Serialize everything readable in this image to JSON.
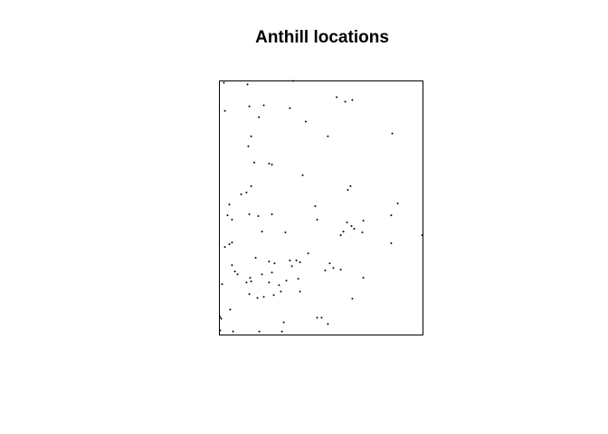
{
  "chart_data": {
    "type": "scatter",
    "title": "Anthill locations",
    "xlabel": "",
    "ylabel": "",
    "axes_shown": false,
    "grid": false,
    "legend": "none",
    "point_color": "#000000",
    "xlim": [
      0,
      100
    ],
    "ylim": [
      0,
      100
    ],
    "points": [
      [
        2.2,
        99.3
      ],
      [
        13.8,
        98.6
      ],
      [
        36.3,
        100.0
      ],
      [
        57.6,
        93.6
      ],
      [
        61.8,
        91.8
      ],
      [
        65.3,
        92.5
      ],
      [
        14.7,
        90.0
      ],
      [
        21.8,
        90.4
      ],
      [
        34.6,
        89.3
      ],
      [
        2.7,
        88.2
      ],
      [
        42.4,
        84.0
      ],
      [
        19.4,
        85.7
      ],
      [
        15.6,
        78.2
      ],
      [
        53.3,
        78.2
      ],
      [
        84.9,
        79.3
      ],
      [
        14.2,
        74.3
      ],
      [
        17.1,
        67.9
      ],
      [
        24.4,
        67.5
      ],
      [
        25.8,
        67.1
      ],
      [
        40.9,
        62.9
      ],
      [
        15.6,
        58.6
      ],
      [
        63.1,
        57.1
      ],
      [
        64.4,
        58.6
      ],
      [
        13.3,
        56.1
      ],
      [
        10.7,
        55.4
      ],
      [
        87.6,
        51.8
      ],
      [
        4.9,
        51.4
      ],
      [
        47.1,
        50.7
      ],
      [
        14.7,
        47.5
      ],
      [
        19.1,
        46.8
      ],
      [
        25.8,
        47.5
      ],
      [
        4.0,
        47.1
      ],
      [
        84.4,
        47.1
      ],
      [
        6.2,
        45.4
      ],
      [
        48.0,
        45.4
      ],
      [
        62.7,
        44.3
      ],
      [
        70.7,
        45.0
      ],
      [
        64.9,
        42.9
      ],
      [
        66.2,
        41.8
      ],
      [
        60.9,
        40.7
      ],
      [
        20.9,
        40.7
      ],
      [
        32.4,
        40.4
      ],
      [
        59.6,
        39.3
      ],
      [
        70.2,
        40.4
      ],
      [
        6.2,
        36.4
      ],
      [
        99.6,
        39.3
      ],
      [
        4.9,
        35.7
      ],
      [
        2.7,
        34.6
      ],
      [
        84.4,
        36.1
      ],
      [
        43.6,
        32.1
      ],
      [
        17.8,
        30.4
      ],
      [
        34.6,
        29.3
      ],
      [
        24.4,
        28.9
      ],
      [
        6.2,
        27.5
      ],
      [
        27.1,
        28.2
      ],
      [
        37.8,
        29.3
      ],
      [
        39.6,
        28.6
      ],
      [
        54.2,
        28.2
      ],
      [
        35.6,
        27.1
      ],
      [
        56.0,
        26.4
      ],
      [
        7.6,
        25.0
      ],
      [
        8.9,
        23.9
      ],
      [
        25.8,
        24.6
      ],
      [
        52.0,
        25.4
      ],
      [
        59.6,
        25.7
      ],
      [
        15.1,
        22.5
      ],
      [
        20.9,
        23.9
      ],
      [
        38.7,
        22.1
      ],
      [
        32.9,
        21.4
      ],
      [
        70.7,
        22.5
      ],
      [
        15.6,
        21.1
      ],
      [
        24.4,
        20.7
      ],
      [
        1.3,
        20.0
      ],
      [
        29.3,
        19.6
      ],
      [
        13.3,
        20.7
      ],
      [
        30.2,
        17.1
      ],
      [
        39.6,
        17.1
      ],
      [
        14.7,
        16.1
      ],
      [
        21.8,
        15.0
      ],
      [
        26.7,
        15.7
      ],
      [
        18.7,
        14.6
      ],
      [
        65.3,
        14.3
      ],
      [
        5.3,
        10.0
      ],
      [
        0.4,
        7.1
      ],
      [
        0.9,
        6.4
      ],
      [
        48.0,
        6.8
      ],
      [
        50.2,
        6.8
      ],
      [
        31.6,
        5.0
      ],
      [
        53.3,
        4.3
      ],
      [
        0.4,
        1.8
      ],
      [
        6.7,
        1.4
      ],
      [
        19.6,
        1.4
      ],
      [
        30.7,
        1.4
      ]
    ]
  }
}
